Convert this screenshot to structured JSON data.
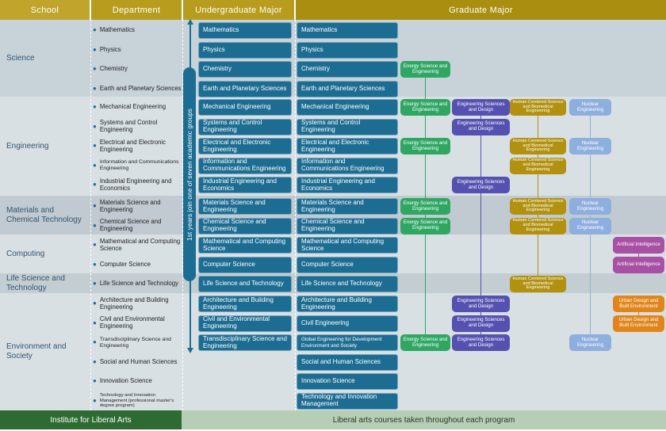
{
  "header": {
    "columns": [
      "School",
      "Department",
      "Undergraduate Major",
      "Graduate Major"
    ]
  },
  "arrow_note": "1st years join one of seven academic groups",
  "footer": {
    "institute": "Institute for Liberal Arts",
    "courses": "Liberal arts courses taken throughout each program"
  },
  "colors": {
    "header_gold": "#b89c1e",
    "graduate_header_gold": "#a98e10",
    "major_box_teal": "#1d6d93",
    "institute_green": "#2e6b33",
    "liberal_arts_green": "#b6cdb6"
  },
  "programs": {
    "energy": {
      "label": "Energy Science and Engineering",
      "color": "#2fa763"
    },
    "esd": {
      "label": "Engineering Sciences and Design",
      "color": "#5551b0"
    },
    "hcb": {
      "label": "Human Centered Science and Biomedical Engineering",
      "color": "#b1910f"
    },
    "nuclear": {
      "label": "Nuclear Engineering",
      "color": "#8eaede"
    },
    "ai": {
      "label": "Artificial Intelligence",
      "color": "#a850a3"
    },
    "urban": {
      "label": "Urban Design and Built Environment",
      "color": "#e1851b"
    }
  },
  "schools": [
    {
      "name": "Science",
      "rows": [
        {
          "department": "Mathematics",
          "undergraduate": "Mathematics",
          "graduate": "Mathematics",
          "cross": []
        },
        {
          "department": "Physics",
          "undergraduate": "Physics",
          "graduate": "Physics",
          "cross": []
        },
        {
          "department": "Chemistry",
          "undergraduate": "Chemistry",
          "graduate": "Chemistry",
          "cross": [
            "energy"
          ]
        },
        {
          "department": "Earth and Planetary Sciences",
          "undergraduate": "Earth and Planetary Sciences",
          "graduate": "Earth and Planetary Sciences",
          "cross": []
        }
      ]
    },
    {
      "name": "Engineering",
      "rows": [
        {
          "department": "Mechanical Engineering",
          "undergraduate": "Mechanical Engineering",
          "graduate": "Mechanical Engineering",
          "cross": [
            "energy",
            "esd",
            "hcb",
            "nuclear"
          ]
        },
        {
          "department": "Systems and Control Engineering",
          "undergraduate": "Systems and Control Engineering",
          "graduate": "Systems and Control Engineering",
          "cross": [
            "esd"
          ]
        },
        {
          "department": "Electrical and Electronic Engineering",
          "undergraduate": "Electrical and Electronic Engineering",
          "graduate": "Electrical and Electronic Engineering",
          "cross": [
            "energy",
            "hcb",
            "nuclear"
          ]
        },
        {
          "department": "Information and Communications Engineering",
          "undergraduate": "Information and Communications Engineering",
          "graduate": "Information and Communications Engineering",
          "cross": [
            "hcb"
          ]
        },
        {
          "department": "Industrial Engineering and Economics",
          "undergraduate": "Industrial Engineering and Economics",
          "graduate": "Industrial Engineering and Economics",
          "cross": [
            "esd"
          ]
        }
      ]
    },
    {
      "name": "Materials and Chemical Technology",
      "rows": [
        {
          "department": "Materials Science and Engineering",
          "undergraduate": "Materials Science and Engineering",
          "graduate": "Materials Science and Engineering",
          "cross": [
            "energy",
            "hcb",
            "nuclear"
          ]
        },
        {
          "department": "Chemical Science and Engineering",
          "undergraduate": "Chemical Science and Engineering",
          "graduate": "Chemical Science and Engineering",
          "cross": [
            "energy",
            "hcb",
            "nuclear"
          ]
        }
      ]
    },
    {
      "name": "Computing",
      "rows": [
        {
          "department": "Mathematical and Computing Science",
          "undergraduate": "Mathematical and Computing Science",
          "graduate": "Mathematical and Computing Science",
          "cross": [
            "ai"
          ]
        },
        {
          "department": "Computer Science",
          "undergraduate": "Computer Science",
          "graduate": "Computer Science",
          "cross": [
            "ai"
          ]
        }
      ]
    },
    {
      "name": "Life Science and Technology",
      "rows": [
        {
          "department": "Life Science and Technology",
          "undergraduate": "Life Science and Technology",
          "graduate": "Life Science and Technology",
          "cross": [
            "hcb"
          ]
        }
      ]
    },
    {
      "name": "Environment and Society",
      "rows": [
        {
          "department": "Architecture and Building Engineering",
          "undergraduate": "Architecture and Building Engineering",
          "graduate": "Architecture and Building Engineering",
          "cross": [
            "esd",
            "urban"
          ]
        },
        {
          "department": "Civil and Environmental Engineering",
          "undergraduate": "Civil and Environmental Engineering",
          "graduate": "Civil Engineering",
          "cross": [
            "esd",
            "urban"
          ]
        },
        {
          "department": "Transdisciplinary Science and Engineering",
          "undergraduate": "Transdisciplinary Science and Engineering",
          "graduate": "Global Engineering for Development Environment and Society",
          "cross": [
            "energy",
            "esd",
            "nuclear"
          ]
        },
        {
          "department": "Social and Human Sciences",
          "undergraduate": null,
          "graduate": "Social and Human Sciences",
          "cross": []
        },
        {
          "department": "Innovation Science",
          "undergraduate": null,
          "graduate": "Innovation Science",
          "cross": []
        },
        {
          "department": "Technology and Innovation Management (professional master's degree program)",
          "undergraduate": null,
          "graduate": "Technology and Innovation Management",
          "cross": []
        }
      ]
    }
  ]
}
